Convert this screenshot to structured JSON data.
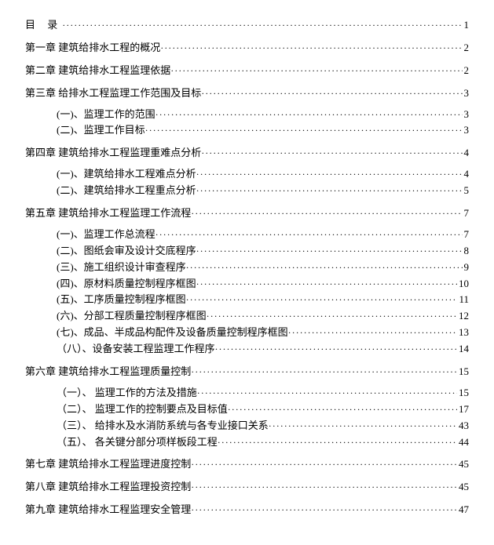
{
  "toc": [
    {
      "level": 0,
      "title": "目   录",
      "page": 1,
      "isHeading": true
    },
    {
      "level": 0,
      "title": "第一章  建筑给排水工程的概况",
      "page": 2
    },
    {
      "level": 0,
      "title": "第二章  建筑给排水工程监理依据",
      "page": 2
    },
    {
      "level": 0,
      "title": "第三章  给排水工程监理工作范围及目标",
      "page": 3
    },
    {
      "level": 1,
      "title": "(一)、监理工作的范围",
      "page": 3
    },
    {
      "level": 1,
      "title": "(二)、监理工作目标",
      "page": 3
    },
    {
      "level": 0,
      "title": "第四章  建筑给排水工程监理重难点分析",
      "page": 4
    },
    {
      "level": 1,
      "title": "(一)、建筑给排水工程难点分析",
      "page": 4
    },
    {
      "level": 1,
      "title": "(二)、建筑给排水工程重点分析",
      "page": 5
    },
    {
      "level": 0,
      "title": "第五章  建筑给排水工程监理工作流程",
      "page": 7
    },
    {
      "level": 1,
      "title": "(一)、监理工作总流程",
      "page": 7
    },
    {
      "level": 1,
      "title": "(二)、图纸会审及设计交底程序",
      "page": 8
    },
    {
      "level": 1,
      "title": "(三)、施工组织设计审查程序",
      "page": 9
    },
    {
      "level": 1,
      "title": "(四)、原材料质量控制程序框图",
      "page": 10
    },
    {
      "level": 1,
      "title": "(五)、工序质量控制程序框图",
      "page": 11
    },
    {
      "level": 1,
      "title": "(六)、分部工程质量控制程序框图",
      "page": 12
    },
    {
      "level": 1,
      "title": "(七)、成品、半成品构配件及设备质量控制程序框图",
      "page": 13
    },
    {
      "level": 1,
      "title": "（八）、设备安装工程监理工作程序",
      "page": 14
    },
    {
      "level": 0,
      "title": "第六章  建筑给排水工程监理质量控制",
      "page": 15
    },
    {
      "level": 1,
      "title": "（一）、  监理工作的方法及措施",
      "page": 15
    },
    {
      "level": 1,
      "title": "（二）、  监理工作的控制要点及目标值",
      "page": 17
    },
    {
      "level": 1,
      "title": "（三）、  给排水及水消防系统与各专业接口关系",
      "page": 43
    },
    {
      "level": 1,
      "title": "（五）、  各关键分部分项样板段工程",
      "page": 44
    },
    {
      "level": 0,
      "title": "第七章  建筑给排水工程监理进度控制",
      "page": 45
    },
    {
      "level": 0,
      "title": "第八章  建筑给排水工程监理投资控制",
      "page": 45
    },
    {
      "level": 0,
      "title": "第九章  建筑给排水工程监理安全管理",
      "page": 47
    }
  ]
}
